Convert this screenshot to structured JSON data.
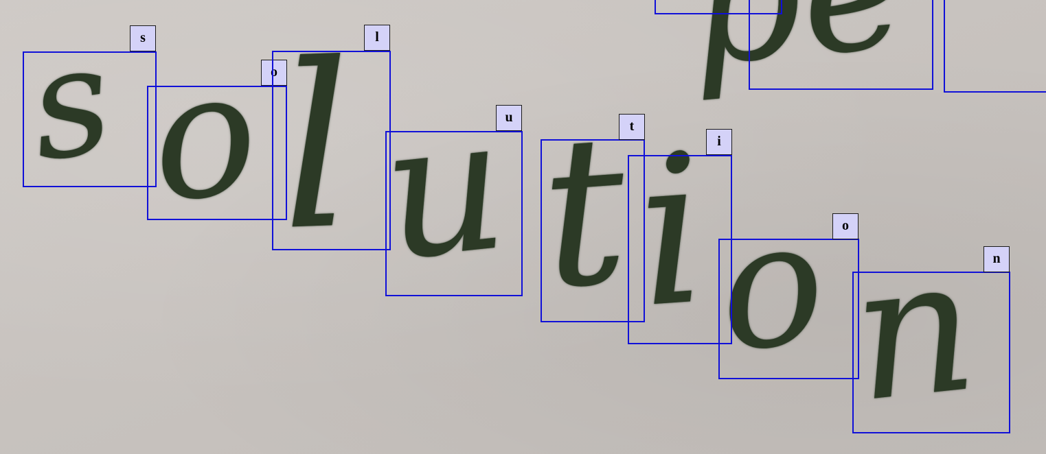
{
  "image": {
    "word": "solution",
    "partial_word_top_right": "spe"
  },
  "annotations": [
    {
      "label": "s"
    },
    {
      "label": "o"
    },
    {
      "label": "l"
    },
    {
      "label": "u"
    },
    {
      "label": "t"
    },
    {
      "label": "i"
    },
    {
      "label": "o"
    },
    {
      "label": "n"
    }
  ],
  "colors": {
    "box": "#1010d8",
    "tag_background": "#d4d2f8",
    "ink": "#2c3a26",
    "paper": "#c9c4c0"
  }
}
